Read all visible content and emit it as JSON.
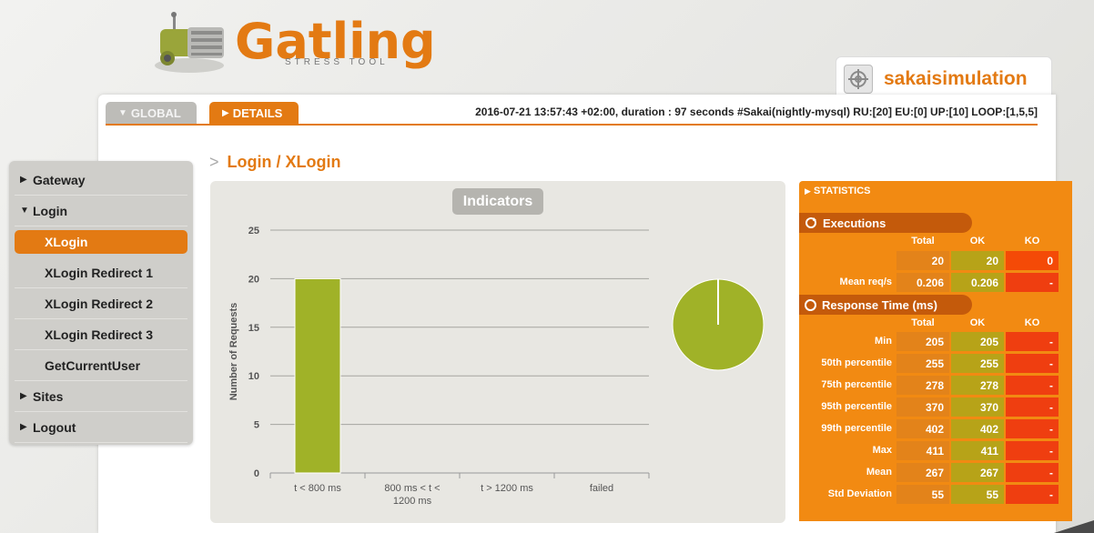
{
  "logo": {
    "word": "Gatling",
    "subtitle": "STRESS TOOL"
  },
  "simulation": {
    "name": "sakaisimulation"
  },
  "tabs": {
    "global": "GLOBAL",
    "details": "DETAILS"
  },
  "run_info": "2016-07-21 13:57:43 +02:00, duration : 97 seconds #Sakai(nightly-mysql) RU:[20] EU:[0] UP:[10] LOOP:[1,5,5]",
  "sidebar": {
    "items": [
      {
        "label": "Gateway",
        "type": "group",
        "expanded": false
      },
      {
        "label": "Login",
        "type": "group",
        "expanded": true
      },
      {
        "label": "XLogin",
        "type": "child",
        "active": true
      },
      {
        "label": "XLogin Redirect 1",
        "type": "child"
      },
      {
        "label": "XLogin Redirect 2",
        "type": "child"
      },
      {
        "label": "XLogin Redirect 3",
        "type": "child"
      },
      {
        "label": "GetCurrentUser",
        "type": "child"
      },
      {
        "label": "Sites",
        "type": "group",
        "expanded": false
      },
      {
        "label": "Logout",
        "type": "group",
        "expanded": false
      }
    ]
  },
  "page_title": {
    "prefix": ">",
    "text": "Login / XLogin"
  },
  "indicators": {
    "title": "Indicators"
  },
  "chart_data": {
    "type": "bar",
    "title": "Indicators",
    "categories": [
      "t < 800 ms",
      "800 ms < t < 1200 ms",
      "t > 1200 ms",
      "failed"
    ],
    "category_lines": [
      [
        "t < 800 ms"
      ],
      [
        "800 ms < t <",
        "1200 ms"
      ],
      [
        "t > 1200 ms"
      ],
      [
        "failed"
      ]
    ],
    "values": [
      20,
      0,
      0,
      0
    ],
    "ylabel": "Number of Requests",
    "xlabel": "",
    "ylim": [
      0,
      25
    ],
    "yticks": [
      0,
      5,
      10,
      15,
      20,
      25
    ],
    "pie": {
      "type": "pie",
      "slices": [
        {
          "label": "t < 800 ms",
          "value": 20
        }
      ]
    },
    "colors": {
      "bar": "#a0b228",
      "pie": "#a0b228"
    }
  },
  "statistics": {
    "title": "STATISTICS",
    "executions": {
      "title": "Executions",
      "columns": [
        "Total",
        "OK",
        "KO"
      ],
      "rows": [
        {
          "label": "",
          "total": "20",
          "ok": "20",
          "ko": "0"
        },
        {
          "label": "Mean req/s",
          "total": "0.206",
          "ok": "0.206",
          "ko": "-"
        }
      ]
    },
    "response_time": {
      "title": "Response Time (ms)",
      "columns": [
        "Total",
        "OK",
        "KO"
      ],
      "rows": [
        {
          "label": "Min",
          "total": "205",
          "ok": "205",
          "ko": "-"
        },
        {
          "label": "50th percentile",
          "total": "255",
          "ok": "255",
          "ko": "-"
        },
        {
          "label": "75th percentile",
          "total": "278",
          "ok": "278",
          "ko": "-"
        },
        {
          "label": "95th percentile",
          "total": "370",
          "ok": "370",
          "ko": "-"
        },
        {
          "label": "99th percentile",
          "total": "402",
          "ok": "402",
          "ko": "-"
        },
        {
          "label": "Max",
          "total": "411",
          "ok": "411",
          "ko": "-"
        },
        {
          "label": "Mean",
          "total": "267",
          "ok": "267",
          "ko": "-"
        },
        {
          "label": "Std Deviation",
          "total": "55",
          "ok": "55",
          "ko": "-"
        }
      ]
    }
  },
  "icons": {
    "sim": "target-icon",
    "exec": "refresh-icon",
    "rt": "clock-icon"
  },
  "accent": "#e37a13"
}
